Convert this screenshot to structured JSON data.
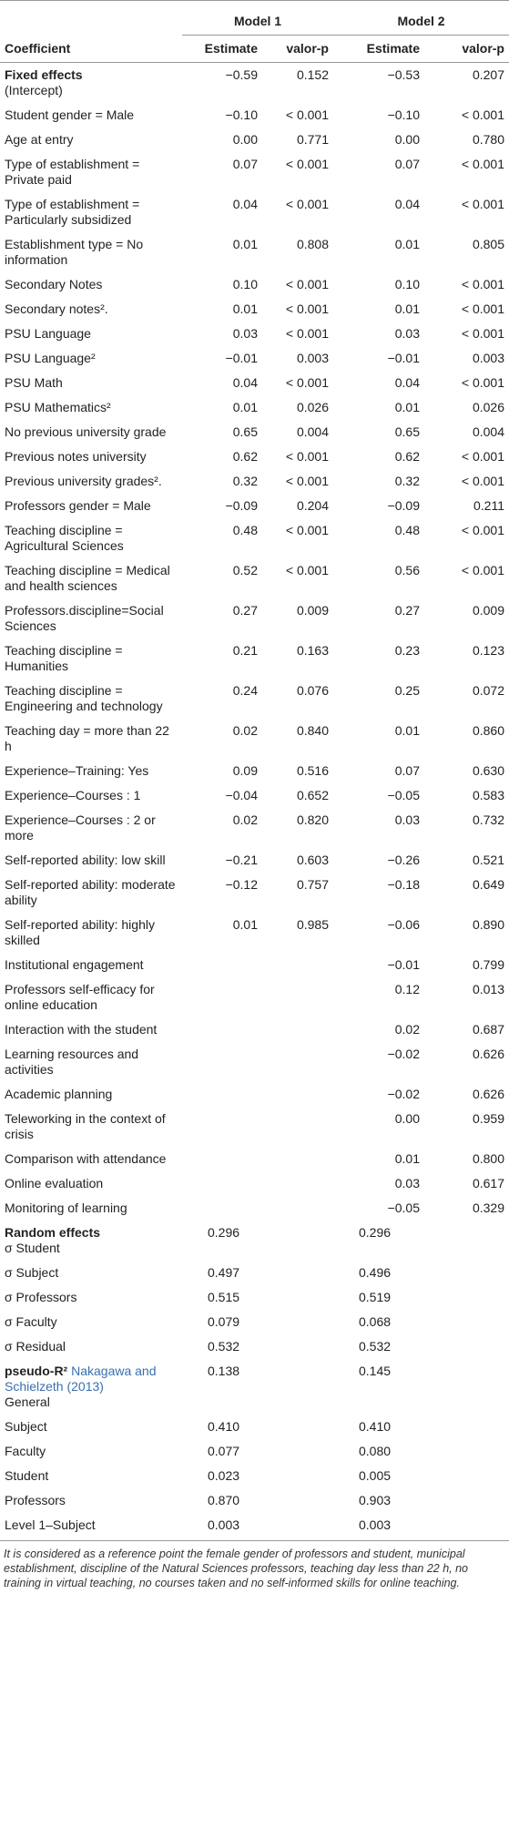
{
  "table": {
    "models": [
      "Model 1",
      "Model 2"
    ],
    "columns": [
      "Coefficient",
      "Estimate",
      "valor-p",
      "Estimate",
      "valor-p"
    ],
    "rows": [
      {
        "heading": "Fixed effects",
        "label": "(Intercept)",
        "cells": [
          "−0.59",
          "0.152",
          "−0.53",
          "0.207"
        ]
      },
      {
        "label": "Student gender = Male",
        "cells": [
          "−0.10",
          "< 0.001",
          "−0.10",
          "< 0.001"
        ]
      },
      {
        "label": "Age at entry",
        "cells": [
          "0.00",
          "0.771",
          "0.00",
          "0.780"
        ]
      },
      {
        "label": "Type of establishment = Private paid",
        "cells": [
          "0.07",
          "< 0.001",
          "0.07",
          "< 0.001"
        ]
      },
      {
        "label": "Type of establishment = Particularly subsidized",
        "cells": [
          "0.04",
          "< 0.001",
          "0.04",
          "< 0.001"
        ]
      },
      {
        "label": "Establishment type = No information",
        "cells": [
          "0.01",
          "0.808",
          "0.01",
          "0.805"
        ]
      },
      {
        "label": "Secondary Notes",
        "cells": [
          "0.10",
          "< 0.001",
          "0.10",
          "< 0.001"
        ]
      },
      {
        "label": "Secondary notes².",
        "cells": [
          "0.01",
          "< 0.001",
          "0.01",
          "< 0.001"
        ]
      },
      {
        "label": "PSU Language",
        "cells": [
          "0.03",
          "< 0.001",
          "0.03",
          "< 0.001"
        ]
      },
      {
        "label": "PSU Language²",
        "cells": [
          "−0.01",
          "0.003",
          "−0.01",
          "0.003"
        ]
      },
      {
        "label": "PSU Math",
        "cells": [
          "0.04",
          "< 0.001",
          "0.04",
          "< 0.001"
        ]
      },
      {
        "label": "PSU Mathematics²",
        "cells": [
          "0.01",
          "0.026",
          "0.01",
          "0.026"
        ]
      },
      {
        "label": "No previous university grade",
        "cells": [
          "0.65",
          "0.004",
          "0.65",
          "0.004"
        ]
      },
      {
        "label": "Previous notes university",
        "cells": [
          "0.62",
          "< 0.001",
          "0.62",
          "< 0.001"
        ]
      },
      {
        "label": "Previous university grades².",
        "cells": [
          "0.32",
          "< 0.001",
          "0.32",
          "< 0.001"
        ]
      },
      {
        "label": "Professors gender = Male",
        "cells": [
          "−0.09",
          "0.204",
          "−0.09",
          "0.211"
        ]
      },
      {
        "label": "Teaching discipline = Agricultural Sciences",
        "cells": [
          "0.48",
          "< 0.001",
          "0.48",
          "< 0.001"
        ]
      },
      {
        "label": "Teaching discipline = Medical and health sciences",
        "cells": [
          "0.52",
          "< 0.001",
          "0.56",
          "< 0.001"
        ]
      },
      {
        "label": "Professors.discipline=Social Sciences",
        "cells": [
          "0.27",
          "0.009",
          "0.27",
          "0.009"
        ]
      },
      {
        "label": "Teaching discipline = Humanities",
        "cells": [
          "0.21",
          "0.163",
          "0.23",
          "0.123"
        ]
      },
      {
        "label": "Teaching discipline = Engineering and technology",
        "cells": [
          "0.24",
          "0.076",
          "0.25",
          "0.072"
        ]
      },
      {
        "label": "Teaching day = more than 22 h",
        "cells": [
          "0.02",
          "0.840",
          "0.01",
          "0.860"
        ]
      },
      {
        "label": "Experience–Training: Yes",
        "cells": [
          "0.09",
          "0.516",
          "0.07",
          "0.630"
        ]
      },
      {
        "label": "Experience–Courses : 1",
        "cells": [
          "−0.04",
          "0.652",
          "−0.05",
          "0.583"
        ]
      },
      {
        "label": "Experience–Courses : 2 or more",
        "cells": [
          "0.02",
          "0.820",
          "0.03",
          "0.732"
        ]
      },
      {
        "label": "Self-reported ability: low skill",
        "cells": [
          "−0.21",
          "0.603",
          "−0.26",
          "0.521"
        ]
      },
      {
        "label": "Self-reported ability: moderate ability",
        "cells": [
          "−0.12",
          "0.757",
          "−0.18",
          "0.649"
        ]
      },
      {
        "label": "Self-reported ability: highly skilled",
        "cells": [
          "0.01",
          "0.985",
          "−0.06",
          "0.890"
        ]
      },
      {
        "label": "Institutional engagement",
        "cells": [
          null,
          null,
          "−0.01",
          "0.799"
        ]
      },
      {
        "label": "Professors self-efficacy for online education",
        "cells": [
          null,
          null,
          "0.12",
          "0.013"
        ]
      },
      {
        "label": "Interaction with the student",
        "cells": [
          null,
          null,
          "0.02",
          "0.687"
        ]
      },
      {
        "label": "Learning resources and activities",
        "cells": [
          null,
          null,
          "−0.02",
          "0.626"
        ]
      },
      {
        "label": "Academic planning",
        "cells": [
          null,
          null,
          "−0.02",
          "0.626"
        ]
      },
      {
        "label": "Teleworking in the context of crisis",
        "cells": [
          null,
          null,
          "0.00",
          "0.959"
        ]
      },
      {
        "label": "Comparison with attendance",
        "cells": [
          null,
          null,
          "0.01",
          "0.800"
        ]
      },
      {
        "label": "Online evaluation",
        "cells": [
          null,
          null,
          "0.03",
          "0.617"
        ]
      },
      {
        "label": "Monitoring of learning",
        "cells": [
          null,
          null,
          "−0.05",
          "0.329"
        ]
      },
      {
        "heading": "Random effects",
        "label": "σ Student",
        "cells": [
          "0.296",
          null,
          "0.296",
          null
        ]
      },
      {
        "label": "σ Subject",
        "cells": [
          "0.497",
          null,
          "0.496",
          null
        ]
      },
      {
        "label": "σ Professors",
        "cells": [
          "0.515",
          null,
          "0.519",
          null
        ]
      },
      {
        "label": "σ Faculty",
        "cells": [
          "0.079",
          null,
          "0.068",
          null
        ]
      },
      {
        "label": "σ Residual",
        "cells": [
          "0.532",
          null,
          "0.532",
          null
        ]
      },
      {
        "heading": "pseudo-R²",
        "cite": "Nakagawa and Schielzeth (2013)",
        "label": "General",
        "cells": [
          "0.138",
          null,
          "0.145",
          null
        ]
      },
      {
        "label": "Subject",
        "cells": [
          "0.410",
          null,
          "0.410",
          null
        ]
      },
      {
        "label": "Faculty",
        "cells": [
          "0.077",
          null,
          "0.080",
          null
        ]
      },
      {
        "label": "Student",
        "cells": [
          "0.023",
          null,
          "0.005",
          null
        ]
      },
      {
        "label": "Professors",
        "cells": [
          "0.870",
          null,
          "0.903",
          null
        ]
      },
      {
        "label": "Level 1–Subject",
        "cells": [
          "0.003",
          null,
          "0.003",
          null
        ]
      }
    ],
    "footnote": "It is considered as a reference point the female gender of professors and student, municipal establishment, discipline of the Natural Sciences professors, teaching day less than 22 h, no training in virtual teaching, no courses taken and no self-informed skills for online teaching."
  }
}
